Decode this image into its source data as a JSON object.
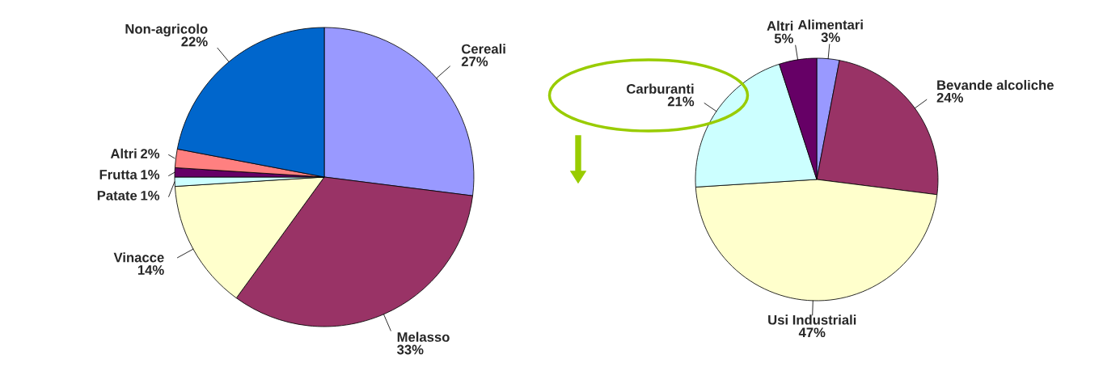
{
  "chart_data": [
    {
      "type": "pie",
      "categories": [
        "Cereali",
        "Melasso",
        "Vinacce",
        "Patate",
        "Frutta",
        "Altri",
        "Non-agricolo"
      ],
      "values": [
        27,
        33,
        14,
        1,
        1,
        2,
        22
      ],
      "colors": [
        "#9999ff",
        "#993366",
        "#ffffcc",
        "#ccffff",
        "#660066",
        "#ff8080",
        "#0066cc"
      ],
      "value_labels": [
        "27%",
        "33%",
        "14%",
        "1%",
        "1%",
        "2%",
        "22%"
      ]
    },
    {
      "type": "pie",
      "categories": [
        "Alimentari",
        "Bevande alcoliche",
        "Usi Industriali",
        "Carburanti",
        "Altri"
      ],
      "values": [
        3,
        24,
        47,
        21,
        5
      ],
      "colors": [
        "#9999ff",
        "#993366",
        "#ffffcc",
        "#ccffff",
        "#660066"
      ],
      "value_labels": [
        "3%",
        "24%",
        "47%",
        "21%",
        "5%"
      ]
    }
  ]
}
